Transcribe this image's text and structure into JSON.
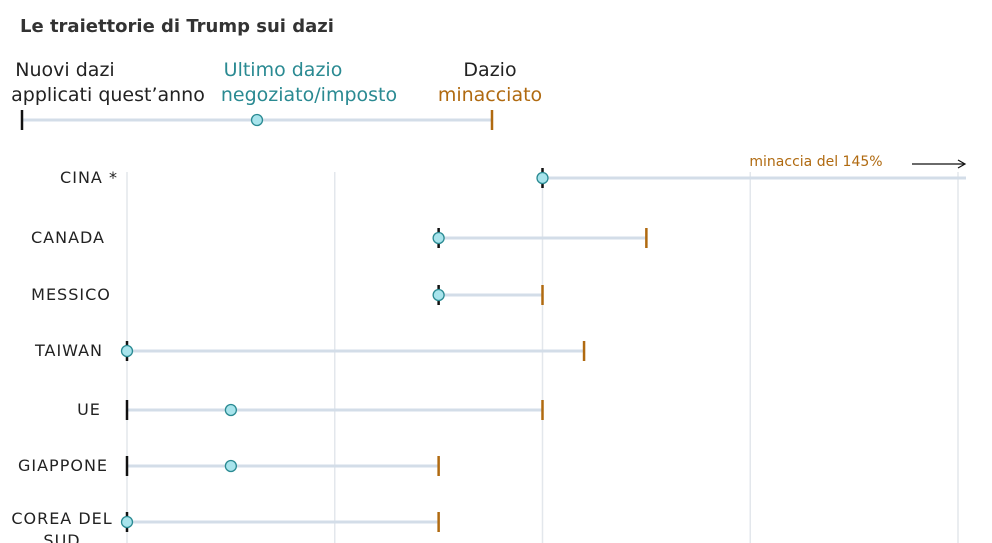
{
  "chart_data": {
    "type": "dumbbell",
    "title": "Le traiettorie di Trump sui dazi",
    "legend": {
      "new_line1": "Nuovi dazi",
      "new_line2": "applicati quest’anno",
      "latest_line1": "Ultimo dazio",
      "latest_line2": "negoziato/imposto",
      "threat_line1": "Dazio",
      "threat_line2": "minacciato"
    },
    "annotation": "minaccia del 145%",
    "xlim": [
      0,
      100
    ],
    "gridlines": [
      0,
      25,
      50,
      75,
      100
    ],
    "rows": [
      {
        "label": "CINA *",
        "new": 50,
        "latest": 50,
        "threat": 145,
        "threat_offscale": true
      },
      {
        "label": "CANADA",
        "new": 37.5,
        "latest": 37.5,
        "threat": 62.5
      },
      {
        "label": "MESSICO",
        "new": 37.5,
        "latest": 37.5,
        "threat": 50
      },
      {
        "label": "TAIWAN",
        "new": 0,
        "latest": 0,
        "threat": 55
      },
      {
        "label": "UE",
        "new": 0,
        "latest": 12.5,
        "threat": 50
      },
      {
        "label": "GIAPPONE",
        "new": 0,
        "latest": 12.5,
        "threat": 37.5
      },
      {
        "label": "COREA DEL SUD",
        "new": 0,
        "latest": 0,
        "threat": 37.5
      }
    ]
  },
  "colors": {
    "threat": "#b06a10",
    "latest": "#2a8a92",
    "dot_fill": "#a8e4ec",
    "line": "#d3dde8",
    "grid": "#e3e7ec",
    "tick": "#111111"
  }
}
